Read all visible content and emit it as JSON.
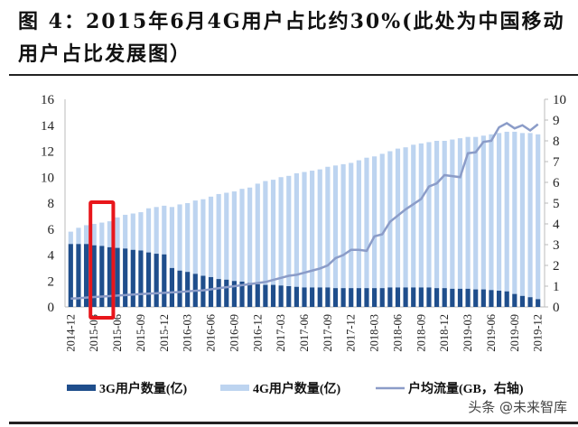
{
  "title": "图 4：2015年6月4G用户占比约30%(此处为中国移动用户占比发展图）",
  "watermark": "头条 @未来智库",
  "chart_data": {
    "type": "bar",
    "stacked": true,
    "title": "图 4：2015年6月4G用户占比约30%(此处为中国移动用户占比发展图）",
    "start_month": "2014-12",
    "x_tick_labels": [
      "2014-12",
      "2015-03",
      "2015-06",
      "2015-09",
      "2015-12",
      "2016-03",
      "2016-06",
      "2016-09",
      "2016-12",
      "2017-03",
      "2017-06",
      "2017-09",
      "2017-12",
      "2018-03",
      "2018-06",
      "2018-09",
      "2018-12",
      "2019-03",
      "2019-06",
      "2019-09",
      "2019-12"
    ],
    "ylim_left": [
      0,
      16
    ],
    "yticks_left": [
      0,
      2,
      4,
      6,
      8,
      10,
      12,
      14,
      16
    ],
    "ylim_right": [
      0,
      10
    ],
    "yticks_right": [
      0,
      1,
      2,
      3,
      4,
      5,
      6,
      7,
      8,
      9,
      10
    ],
    "grid": false,
    "legend_position": "bottom",
    "highlight": {
      "label": "2015-06",
      "color": "#e8161b"
    },
    "series": [
      {
        "name": "3G用户数量(亿)",
        "type": "bar",
        "axis": "left",
        "color": "#1f4e8c",
        "values": [
          4.85,
          4.85,
          4.85,
          4.75,
          4.7,
          4.6,
          4.55,
          4.5,
          4.4,
          4.35,
          4.2,
          4.1,
          4.05,
          3.0,
          2.8,
          2.7,
          2.55,
          2.4,
          2.3,
          2.15,
          2.1,
          2.0,
          1.95,
          1.85,
          1.75,
          1.7,
          1.7,
          1.65,
          1.6,
          1.55,
          1.5,
          1.5,
          1.5,
          1.5,
          1.45,
          1.45,
          1.45,
          1.45,
          1.45,
          1.45,
          1.45,
          1.5,
          1.5,
          1.5,
          1.5,
          1.5,
          1.5,
          1.45,
          1.45,
          1.4,
          1.4,
          1.4,
          1.35,
          1.35,
          1.3,
          1.25,
          1.2,
          1.0,
          0.85,
          0.75,
          0.6
        ]
      },
      {
        "name": "4G用户数量(亿)",
        "type": "bar",
        "axis": "left",
        "color": "#bdd4f0",
        "values": [
          0.95,
          1.25,
          1.45,
          1.65,
          1.8,
          2.0,
          2.35,
          2.6,
          2.8,
          2.95,
          3.4,
          3.6,
          3.75,
          4.7,
          5.1,
          5.3,
          5.65,
          5.9,
          6.2,
          6.55,
          6.7,
          6.9,
          7.15,
          7.35,
          7.75,
          8.0,
          8.1,
          8.35,
          8.5,
          8.75,
          8.9,
          9.0,
          9.1,
          9.3,
          9.45,
          9.55,
          9.65,
          9.85,
          10.05,
          10.15,
          10.35,
          10.5,
          10.7,
          10.8,
          11.0,
          11.1,
          11.2,
          11.35,
          11.35,
          11.5,
          11.6,
          11.7,
          11.75,
          11.85,
          12.0,
          12.15,
          12.3,
          12.5,
          12.55,
          12.65,
          12.7
        ]
      },
      {
        "name": "户均流量(GB，右轴)",
        "type": "line",
        "axis": "right",
        "color": "#8b9cc8",
        "values": [
          0.4,
          0.42,
          0.45,
          0.48,
          0.5,
          0.52,
          0.55,
          0.57,
          0.6,
          0.62,
          0.64,
          0.66,
          0.68,
          0.7,
          0.72,
          0.75,
          0.78,
          0.8,
          0.85,
          0.9,
          0.95,
          1.0,
          1.05,
          1.1,
          1.15,
          1.2,
          1.3,
          1.4,
          1.5,
          1.55,
          1.65,
          1.75,
          1.85,
          2.0,
          2.35,
          2.5,
          2.75,
          2.75,
          2.7,
          3.4,
          3.5,
          4.1,
          4.4,
          4.7,
          4.95,
          5.2,
          5.8,
          5.95,
          6.35,
          6.3,
          6.25,
          7.4,
          7.45,
          7.95,
          8.0,
          8.65,
          8.85,
          8.6,
          8.75,
          8.5,
          8.8
        ]
      }
    ]
  }
}
